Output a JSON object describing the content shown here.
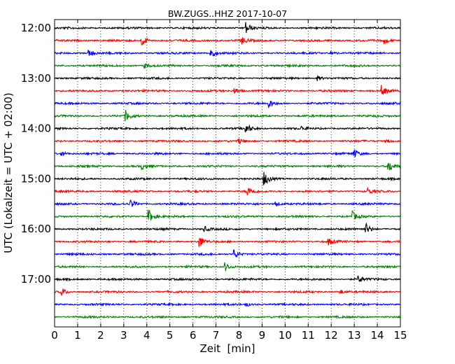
{
  "chart_data": {
    "type": "line",
    "title": "BW.ZUGS..HHZ 2017-10-07",
    "xlabel": "Zeit  [min]",
    "ylabel": "UTC (Lokalzeit = UTC + 02:00)",
    "xlim": [
      0,
      15
    ],
    "x_ticks": [
      "0",
      "1",
      "2",
      "3",
      "4",
      "5",
      "6",
      "7",
      "8",
      "9",
      "10",
      "11",
      "12",
      "13",
      "14",
      "15"
    ],
    "y_ticks": [
      "12:00",
      "13:00",
      "14:00",
      "15:00",
      "16:00",
      "17:00"
    ],
    "grid": "x-dotted",
    "line_colors": [
      "#000000",
      "#ff0000",
      "#0000ff",
      "#008000"
    ],
    "traces": [
      {
        "start": "12:00",
        "events": [
          [
            8.3,
            0.9
          ]
        ]
      },
      {
        "start": "12:15",
        "events": [
          [
            3.8,
            0.8
          ],
          [
            8.1,
            0.6
          ],
          [
            14.3,
            0.4
          ]
        ]
      },
      {
        "start": "12:30",
        "events": [
          [
            1.5,
            0.6
          ],
          [
            6.8,
            0.8
          ],
          [
            12.0,
            0.3
          ]
        ]
      },
      {
        "start": "12:45",
        "events": [
          [
            3.9,
            0.4
          ]
        ]
      },
      {
        "start": "13:00",
        "events": [
          [
            11.4,
            0.4
          ]
        ]
      },
      {
        "start": "13:15",
        "events": [
          [
            7.8,
            0.5
          ],
          [
            14.2,
            0.9
          ]
        ]
      },
      {
        "start": "13:30",
        "events": [
          [
            9.3,
            0.6
          ]
        ]
      },
      {
        "start": "13:45",
        "events": [
          [
            3.1,
            0.8
          ]
        ]
      },
      {
        "start": "14:00",
        "events": [
          [
            8.3,
            0.8
          ],
          [
            10.7,
            0.3
          ]
        ]
      },
      {
        "start": "14:15",
        "events": [
          [
            8.0,
            0.4
          ],
          [
            14.4,
            0.3
          ]
        ]
      },
      {
        "start": "14:30",
        "events": [
          [
            0.3,
            0.4
          ],
          [
            13.0,
            0.6
          ]
        ]
      },
      {
        "start": "14:45",
        "events": [
          [
            3.8,
            0.4
          ],
          [
            14.5,
            0.9
          ]
        ]
      },
      {
        "start": "15:00",
        "events": [
          [
            9.1,
            1.0
          ]
        ]
      },
      {
        "start": "15:15",
        "events": [
          [
            8.4,
            0.7
          ],
          [
            13.6,
            0.5
          ]
        ]
      },
      {
        "start": "15:30",
        "events": [
          [
            3.3,
            0.7
          ],
          [
            9.6,
            0.4
          ]
        ]
      },
      {
        "start": "15:45",
        "events": [
          [
            4.1,
            1.0
          ],
          [
            12.9,
            0.8
          ]
        ]
      },
      {
        "start": "16:00",
        "events": [
          [
            6.5,
            0.4
          ],
          [
            13.5,
            0.9
          ]
        ]
      },
      {
        "start": "16:15",
        "events": [
          [
            6.3,
            0.9
          ],
          [
            11.9,
            0.5
          ]
        ]
      },
      {
        "start": "16:30",
        "events": [
          [
            7.8,
            0.7
          ]
        ]
      },
      {
        "start": "16:45",
        "events": [
          [
            7.4,
            0.7
          ]
        ]
      },
      {
        "start": "17:00",
        "events": [
          [
            13.2,
            0.5
          ]
        ]
      },
      {
        "start": "17:15",
        "events": [
          [
            0.3,
            0.6
          ],
          [
            12.4,
            0.3
          ]
        ]
      },
      {
        "start": "17:30",
        "events": [
          [
            8.3,
            0.3
          ]
        ]
      },
      {
        "start": "17:45",
        "events": []
      }
    ]
  }
}
